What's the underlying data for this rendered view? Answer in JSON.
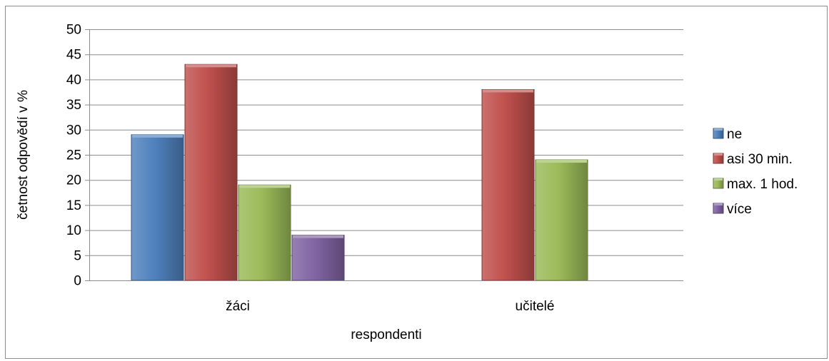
{
  "chart_data": {
    "type": "bar",
    "title": "",
    "xlabel": "respondenti",
    "ylabel": "četnost odpovědí v %",
    "categories": [
      "žáci",
      "učitelé"
    ],
    "series": [
      {
        "name": "ne",
        "values": [
          29,
          null
        ],
        "color": "#4F81BD"
      },
      {
        "name": "asi 30 min.",
        "values": [
          43,
          38
        ],
        "color": "#C0504D"
      },
      {
        "name": "max. 1 hod.",
        "values": [
          19,
          24
        ],
        "color": "#9BBB59"
      },
      {
        "name": "více",
        "values": [
          9,
          null
        ],
        "color": "#8064A2"
      }
    ],
    "ylim": [
      0,
      50
    ],
    "yticks": [
      0,
      5,
      10,
      15,
      20,
      25,
      30,
      35,
      40,
      45,
      50
    ],
    "grid": true,
    "legend_position": "right"
  }
}
